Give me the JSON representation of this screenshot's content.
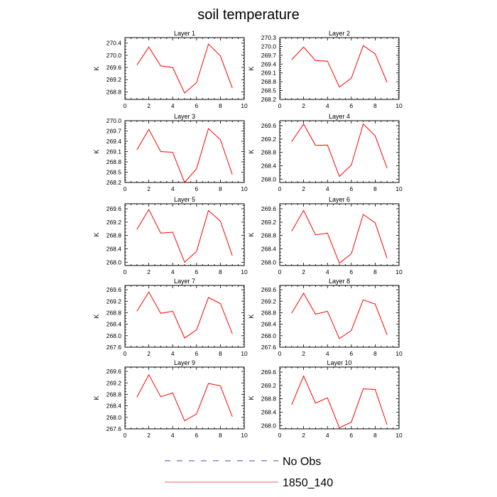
{
  "title": "soil temperature",
  "legend": [
    {
      "label": "No Obs",
      "color": "#4a4aa0",
      "dash": "dashed"
    },
    {
      "label": "1850_140",
      "color": "#ff6060",
      "dash": "solid"
    }
  ],
  "chart_data": [
    {
      "type": "line",
      "title": "Layer 1",
      "ylabel": "K",
      "xlim": [
        0,
        10
      ],
      "ylim": [
        268.55,
        270.58
      ],
      "xticks": [
        0,
        2,
        4,
        6,
        8,
        10
      ],
      "yticks": [
        268.8,
        269.2,
        269.6,
        270.0,
        270.4
      ],
      "x": [
        1,
        2,
        3,
        4,
        5,
        6,
        7,
        8,
        9
      ],
      "series": [
        {
          "name": "1850_140",
          "color": "#ff0000",
          "values": [
            269.68,
            270.27,
            269.65,
            269.6,
            268.76,
            269.1,
            270.37,
            269.98,
            268.92
          ]
        }
      ]
    },
    {
      "type": "line",
      "title": "Layer 2",
      "ylabel": "K",
      "xlim": [
        0,
        10
      ],
      "ylim": [
        268.2,
        270.3
      ],
      "xticks": [
        0,
        2,
        4,
        6,
        8,
        10
      ],
      "yticks": [
        268.2,
        268.5,
        268.8,
        269.1,
        269.4,
        269.7,
        270.0,
        270.3
      ],
      "x": [
        1,
        2,
        3,
        4,
        5,
        6,
        7,
        8,
        9
      ],
      "series": [
        {
          "name": "1850_140",
          "color": "#ff0000",
          "values": [
            269.55,
            269.98,
            269.52,
            269.5,
            268.62,
            268.92,
            270.03,
            269.75,
            268.78
          ]
        }
      ]
    },
    {
      "type": "line",
      "title": "Layer 3",
      "ylabel": "K",
      "xlim": [
        0,
        10
      ],
      "ylim": [
        268.2,
        270.0
      ],
      "xticks": [
        0,
        2,
        4,
        6,
        8,
        10
      ],
      "yticks": [
        268.2,
        268.5,
        268.8,
        269.1,
        269.4,
        269.7,
        270.0
      ],
      "x": [
        1,
        2,
        3,
        4,
        5,
        6,
        7,
        8,
        9
      ],
      "series": [
        {
          "name": "1850_140",
          "color": "#ff0000",
          "values": [
            269.15,
            269.75,
            269.1,
            269.08,
            268.2,
            268.6,
            269.77,
            269.45,
            268.43
          ]
        }
      ]
    },
    {
      "type": "line",
      "title": "Layer 4",
      "ylabel": "K",
      "xlim": [
        0,
        10
      ],
      "ylim": [
        267.9,
        269.75
      ],
      "xticks": [
        0,
        2,
        4,
        6,
        8,
        10
      ],
      "yticks": [
        268.0,
        268.4,
        268.8,
        269.2,
        269.6
      ],
      "x": [
        1,
        2,
        3,
        4,
        5,
        6,
        7,
        8,
        9
      ],
      "series": [
        {
          "name": "1850_140",
          "color": "#ff0000",
          "values": [
            269.12,
            269.65,
            269.01,
            269.02,
            268.08,
            268.42,
            269.65,
            269.3,
            268.33
          ]
        }
      ]
    },
    {
      "type": "line",
      "title": "Layer 5",
      "ylabel": "K",
      "xlim": [
        0,
        10
      ],
      "ylim": [
        267.9,
        269.75
      ],
      "xticks": [
        0,
        2,
        4,
        6,
        8,
        10
      ],
      "yticks": [
        268.0,
        268.4,
        268.8,
        269.2,
        269.6
      ],
      "x": [
        1,
        2,
        3,
        4,
        5,
        6,
        7,
        8,
        9
      ],
      "series": [
        {
          "name": "1850_140",
          "color": "#ff0000",
          "values": [
            268.98,
            269.58,
            268.87,
            268.9,
            268.0,
            268.32,
            269.55,
            269.23,
            268.2
          ]
        }
      ]
    },
    {
      "type": "line",
      "title": "Layer 6",
      "ylabel": "K",
      "xlim": [
        0,
        10
      ],
      "ylim": [
        267.9,
        269.75
      ],
      "xticks": [
        0,
        2,
        4,
        6,
        8,
        10
      ],
      "yticks": [
        268.0,
        268.4,
        268.8,
        269.2,
        269.6
      ],
      "x": [
        1,
        2,
        3,
        4,
        5,
        6,
        7,
        8,
        9
      ],
      "series": [
        {
          "name": "1850_140",
          "color": "#ff0000",
          "values": [
            268.93,
            269.55,
            268.82,
            268.87,
            267.97,
            268.25,
            269.43,
            269.18,
            268.12
          ]
        }
      ]
    },
    {
      "type": "line",
      "title": "Layer 7",
      "ylabel": "K",
      "xlim": [
        0,
        10
      ],
      "ylim": [
        267.6,
        269.75
      ],
      "xticks": [
        0,
        2,
        4,
        6,
        8,
        10
      ],
      "yticks": [
        267.6,
        268.0,
        268.4,
        268.8,
        269.2,
        269.6
      ],
      "x": [
        1,
        2,
        3,
        4,
        5,
        6,
        7,
        8,
        9
      ],
      "series": [
        {
          "name": "1850_140",
          "color": "#ff0000",
          "values": [
            268.85,
            269.52,
            268.78,
            268.85,
            267.92,
            268.2,
            269.33,
            269.12,
            268.07
          ]
        }
      ]
    },
    {
      "type": "line",
      "title": "Layer 8",
      "ylabel": "K",
      "xlim": [
        0,
        10
      ],
      "ylim": [
        267.6,
        269.75
      ],
      "xticks": [
        0,
        2,
        4,
        6,
        8,
        10
      ],
      "yticks": [
        267.6,
        268.0,
        268.4,
        268.8,
        269.2,
        269.6
      ],
      "x": [
        1,
        2,
        3,
        4,
        5,
        6,
        7,
        8,
        9
      ],
      "series": [
        {
          "name": "1850_140",
          "color": "#ff0000",
          "values": [
            268.78,
            269.48,
            268.75,
            268.85,
            267.9,
            268.18,
            269.25,
            269.1,
            268.03
          ]
        }
      ]
    },
    {
      "type": "line",
      "title": "Layer 9",
      "ylabel": "K",
      "xlim": [
        0,
        10
      ],
      "ylim": [
        267.6,
        269.75
      ],
      "xticks": [
        0,
        2,
        4,
        6,
        8,
        10
      ],
      "yticks": [
        267.6,
        268.0,
        268.4,
        268.8,
        269.2,
        269.6
      ],
      "x": [
        1,
        2,
        3,
        4,
        5,
        6,
        7,
        8,
        9
      ],
      "series": [
        {
          "name": "1850_140",
          "color": "#ff0000",
          "values": [
            268.7,
            269.48,
            268.72,
            268.85,
            267.88,
            268.12,
            269.18,
            269.1,
            268.02
          ]
        }
      ]
    },
    {
      "type": "line",
      "title": "Layer 10",
      "ylabel": "K",
      "xlim": [
        0,
        10
      ],
      "ylim": [
        267.9,
        269.75
      ],
      "xticks": [
        0,
        2,
        4,
        6,
        8,
        10
      ],
      "yticks": [
        268.0,
        268.4,
        268.8,
        269.2,
        269.6
      ],
      "x": [
        1,
        2,
        3,
        4,
        5,
        6,
        7,
        8,
        9
      ],
      "series": [
        {
          "name": "1850_140",
          "color": "#ff0000",
          "values": [
            268.62,
            269.48,
            268.67,
            268.83,
            267.93,
            268.1,
            269.1,
            269.08,
            268.02
          ]
        }
      ]
    }
  ]
}
